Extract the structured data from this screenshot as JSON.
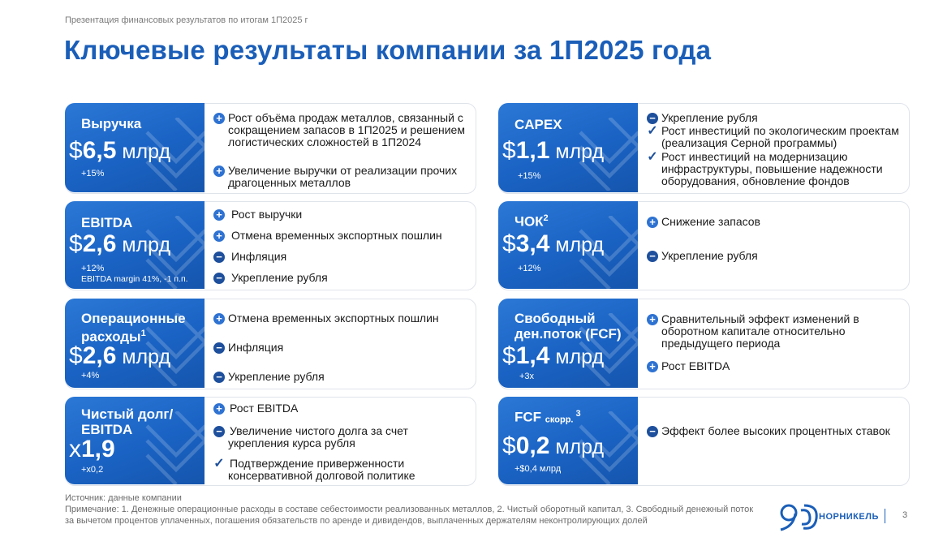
{
  "header": {
    "note": "Презентация финансовых результатов по итогам 1П2025 г",
    "title": "Ключевые результаты компании за 1П2025 года"
  },
  "cards": {
    "revenue": {
      "name": "Выручка",
      "currency": "$",
      "value": "6,5",
      "unit": " млрд",
      "change": "+15%",
      "items": [
        {
          "icon": "plus",
          "text": "Рост объёма продаж металлов, связанный с сокращением запасов в 1П2025 и решением логистических сложностей в 1П2024"
        },
        {
          "icon": "plus",
          "text": "Увеличение выручки от реализации прочих драгоценных металлов"
        }
      ]
    },
    "capex": {
      "name": "CAPEX",
      "currency": "$",
      "value": "1,1",
      "unit": " млрд",
      "change": "+15%",
      "items": [
        {
          "icon": "minus",
          "text": "Укрепление рубля"
        },
        {
          "icon": "check",
          "text": "Рост инвестиций по экологическим проектам (реализация Серной программы)"
        },
        {
          "icon": "check",
          "text": "Рост инвестиций на модернизацию инфраструктуры, повышение надежности оборудования, обновление фондов"
        }
      ]
    },
    "ebitda": {
      "name": "EBITDA",
      "currency": "$",
      "value": "2,6",
      "unit": " млрд",
      "change": "+12%",
      "note": "EBITDA margin 41%, -1 п.п.",
      "items": [
        {
          "icon": "plus",
          "text": "Рост выручки"
        },
        {
          "icon": "plus",
          "text": "Отмена временных экспортных пошлин"
        },
        {
          "icon": "minus",
          "text": "Инфляция"
        },
        {
          "icon": "minus",
          "text": "Укрепление рубля"
        }
      ]
    },
    "nwc": {
      "name": "ЧОК",
      "sup": "2",
      "currency": "$",
      "value": "3,4",
      "unit": " млрд",
      "change": "+12%",
      "items": [
        {
          "icon": "plus",
          "text": "Снижение запасов"
        },
        {
          "icon": "minus",
          "text": "Укрепление рубля"
        }
      ]
    },
    "opex": {
      "name": "Операционные расходы",
      "sup": "1",
      "currency": "$",
      "value": "2,6",
      "unit": " млрд",
      "change": "+4%",
      "items": [
        {
          "icon": "plus",
          "text": "Отмена временных экспортных пошлин"
        },
        {
          "icon": "minus",
          "text": "Инфляция"
        },
        {
          "icon": "minus",
          "text": "Укрепление рубля"
        }
      ]
    },
    "fcf": {
      "name": "Свободный ден.поток (FCF)",
      "currency": "$",
      "value": "1,4",
      "unit": " млрд",
      "change": "+3x",
      "items": [
        {
          "icon": "plus",
          "text": "Сравнительный эффект изменений в оборотном капитале относительно предыдущего периода"
        },
        {
          "icon": "plus",
          "text": "Рост EBITDA"
        }
      ]
    },
    "netdebt": {
      "name": "Чистый долг/ EBITDA",
      "currency": "x",
      "value": "1,9",
      "unit": "",
      "change": "+x0,2",
      "items": [
        {
          "icon": "plus",
          "text": "Рост EBITDA"
        },
        {
          "icon": "minus",
          "text": "Увеличение чистого долга за счет укрепления курса рубля"
        },
        {
          "icon": "check",
          "text": "Подтверждение приверженности консервативной долговой политике"
        }
      ]
    },
    "fcfadj": {
      "name": "FCF",
      "sub": "скорр.",
      "sup": "3",
      "currency": "$",
      "value": "0,2",
      "unit": " млрд",
      "change": "+$0,4 млрд",
      "items": [
        {
          "icon": "minus",
          "text": "Эффект более высоких процентных ставок"
        }
      ]
    }
  },
  "footer": {
    "source": "Источник: данные компании",
    "note": "Примечание: 1. Денежные операционные расходы в составе себестоимости реализованных металлов, 2. Чистый оборотный капитал, 3. Свободный денежный поток за вычетом процентов уплаченных, погашения обязательств по аренде и дивидендов, выплаченных держателям неконтролирующих долей"
  },
  "logo": {
    "text": "НОРНИКЕЛЬ"
  },
  "page_number": "3",
  "colors": {
    "brand": "#1a5eb8",
    "tile": "#1a63c4",
    "plus": "#2e72d2",
    "minus": "#1d4f9c"
  }
}
